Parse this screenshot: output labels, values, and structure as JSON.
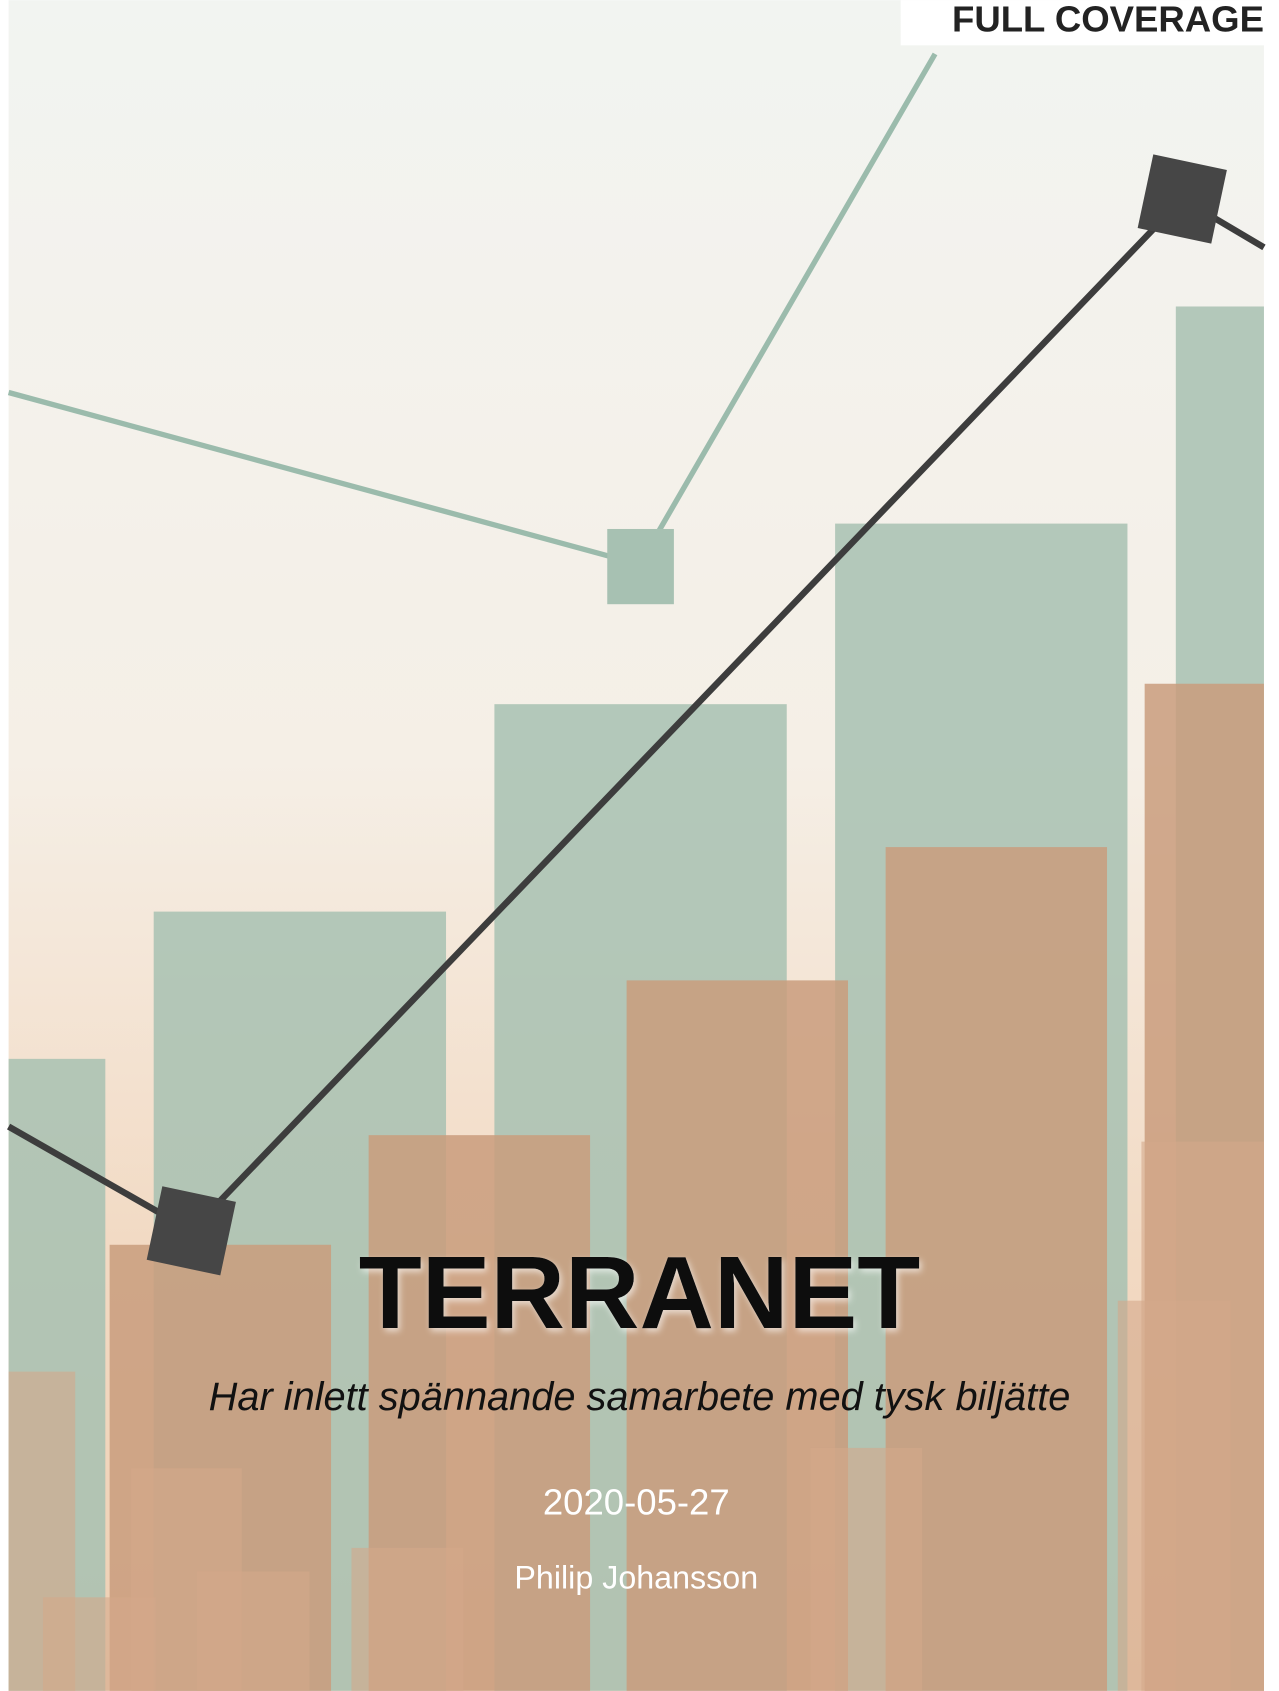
{
  "header": {
    "label": "FULL COVERAGE"
  },
  "title": "TERRANET",
  "subtitle": "Har inlett spännande samarbete med tysk biljätte",
  "date": "2020-05-27",
  "author": "Philip Johansson"
}
